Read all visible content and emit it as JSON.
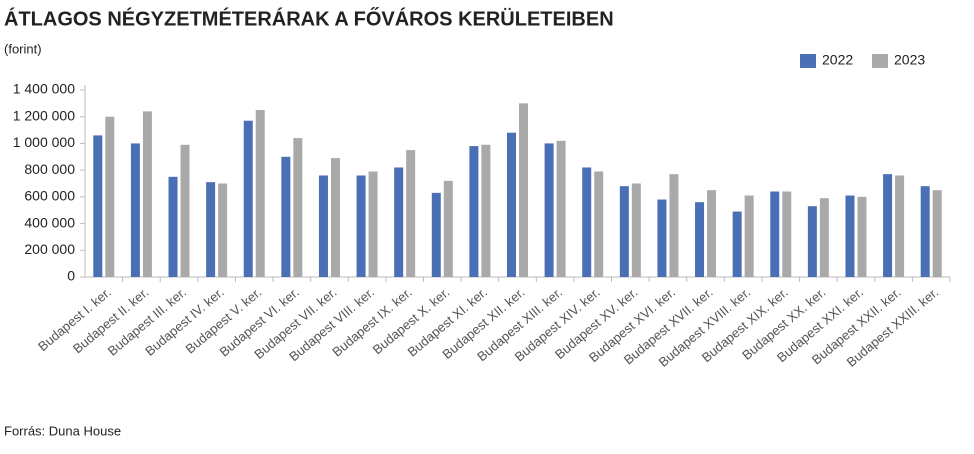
{
  "chart_data": {
    "type": "bar",
    "title": "ÁTLAGOS NÉGYZETMÉTERÁRAK A FŐVÁROS KERÜLETEIBEN",
    "y_label": "(forint)",
    "source": "Forrás: Duna House",
    "categories": [
      "Budapest I. ker.",
      "Budapest II. ker.",
      "Budapest III. ker.",
      "Budapest IV. ker.",
      "Budapest V. ker.",
      "Budapest VI. ker.",
      "Budapest VII. ker.",
      "Budapest VIII. ker.",
      "Budapest IX. ker.",
      "Budapest X. ker.",
      "Budapest XI. ker.",
      "Budapest XII. ker.",
      "Budapest XIII. ker.",
      "Budapest XIV. ker.",
      "Budapest XV. ker.",
      "Budapest XVI. ker.",
      "Budapest XVII. ker.",
      "Budapest XVIII. ker.",
      "Budapest XIX. ker.",
      "Budapest XX. ker.",
      "Budapest XXI. ker.",
      "Budapest XXII. ker.",
      "Budapest XXIII. ker."
    ],
    "series": [
      {
        "name": "2022",
        "color": "#4a6fb5",
        "values": [
          1060000,
          1000000,
          750000,
          710000,
          1170000,
          900000,
          760000,
          760000,
          820000,
          630000,
          980000,
          1080000,
          1000000,
          820000,
          680000,
          580000,
          560000,
          490000,
          640000,
          530000,
          610000,
          770000,
          680000
        ]
      },
      {
        "name": "2023",
        "color": "#a9a9a9",
        "values": [
          1200000,
          1240000,
          990000,
          700000,
          1250000,
          1040000,
          890000,
          790000,
          950000,
          720000,
          990000,
          1300000,
          1020000,
          790000,
          700000,
          770000,
          650000,
          610000,
          640000,
          590000,
          600000,
          760000,
          650000
        ]
      }
    ],
    "ylim": [
      0,
      1400000
    ],
    "yticks": [
      0,
      {
        "value": 200000,
        "label": "200 000"
      },
      {
        "value": 400000,
        "label": "400 000"
      },
      {
        "value": 600000,
        "label": "600 000"
      },
      {
        "value": 800000,
        "label": "800 000"
      },
      {
        "value": 1000000,
        "label": "1 000 000"
      },
      {
        "value": 1200000,
        "label": "1 200 000"
      },
      {
        "value": 1400000,
        "label": "1 400 000"
      }
    ],
    "grid": false,
    "legend": "top-right"
  }
}
